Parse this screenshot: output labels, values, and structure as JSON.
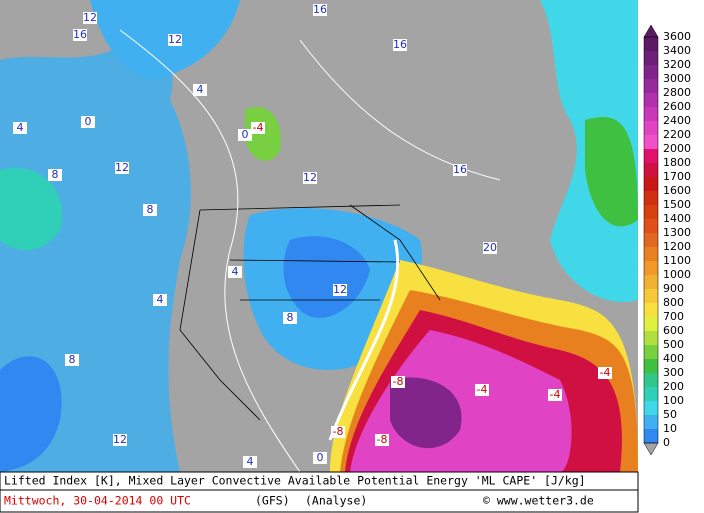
{
  "colorbar": {
    "labels": [
      "3600",
      "3400",
      "3200",
      "3000",
      "2800",
      "2600",
      "2400",
      "2200",
      "2000",
      "1800",
      "1700",
      "1600",
      "1500",
      "1400",
      "1300",
      "1200",
      "1100",
      "1000",
      "900",
      "800",
      "700",
      "600",
      "500",
      "400",
      "300",
      "200",
      "100",
      "50",
      "10",
      "0"
    ],
    "colors": [
      "#5c1a66",
      "#6e1f78",
      "#82258a",
      "#962a9c",
      "#b030ae",
      "#c838b8",
      "#e044c4",
      "#f050c8",
      "#e0106c",
      "#d01040",
      "#c81818",
      "#d03010",
      "#d84010",
      "#e05018",
      "#e06820",
      "#e88020",
      "#f09828",
      "#f0b030",
      "#f8c838",
      "#f8e040",
      "#e0f040",
      "#b0e040",
      "#78d040",
      "#40c040",
      "#30c888",
      "#30d0b8",
      "#40d8e8",
      "#40b0f0",
      "#3088f0"
    ]
  },
  "map": {
    "labels": [
      "12",
      "16",
      "4",
      "8",
      "0",
      "12",
      "16",
      "4",
      "12",
      "8",
      "16",
      "12",
      "4",
      "0",
      "8",
      "4",
      "16",
      "12",
      "20",
      "4",
      "-4",
      "-8",
      "-4",
      "-8",
      "-4",
      "-8",
      "-4",
      "0",
      "8",
      "12"
    ]
  },
  "caption": {
    "title": "Lifted Index [K], Mixed Layer Convective Available Potential Energy 'ML CAPE' [J/kg]",
    "date": "Mittwoch, 30-04-2014  00 UTC",
    "model": "(GFS)",
    "analysis": "(Analyse)",
    "credit": "© www.wetter3.de"
  }
}
